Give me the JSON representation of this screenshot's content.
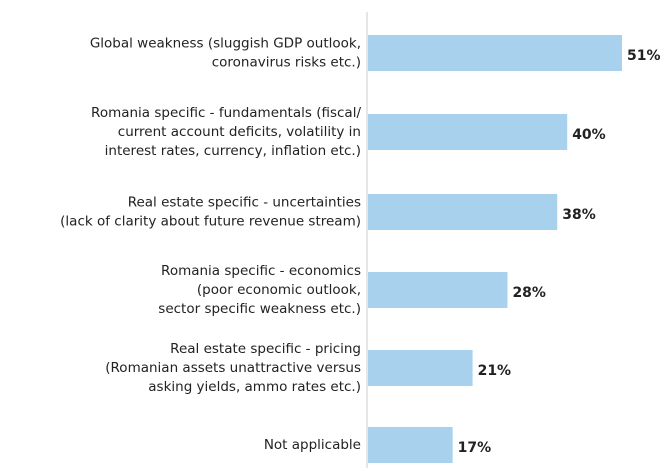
{
  "chart_data": {
    "type": "bar",
    "orientation": "horizontal",
    "categories": [
      "Global weakness (sluggish GDP outlook,\ncoronavirus risks etc.)",
      "Romania specific - fundamentals (fiscal/\ncurrent account deficits, volatility in\ninterest rates, currency, inflation etc.)",
      "Real estate specific - uncertainties\n(lack of clarity about future revenue stream)",
      "Romania specific - economics\n(poor economic outlook,\nsector specific weakness etc.)",
      "Real estate specific - pricing\n(Romanian assets unattractive versus\nasking yields, ammo rates etc.)",
      "Not applicable"
    ],
    "values": [
      51,
      40,
      38,
      28,
      21,
      17
    ],
    "value_labels": [
      "51%",
      "40%",
      "38%",
      "28%",
      "21%",
      "17%"
    ],
    "color": "#a8d1ee"
  }
}
